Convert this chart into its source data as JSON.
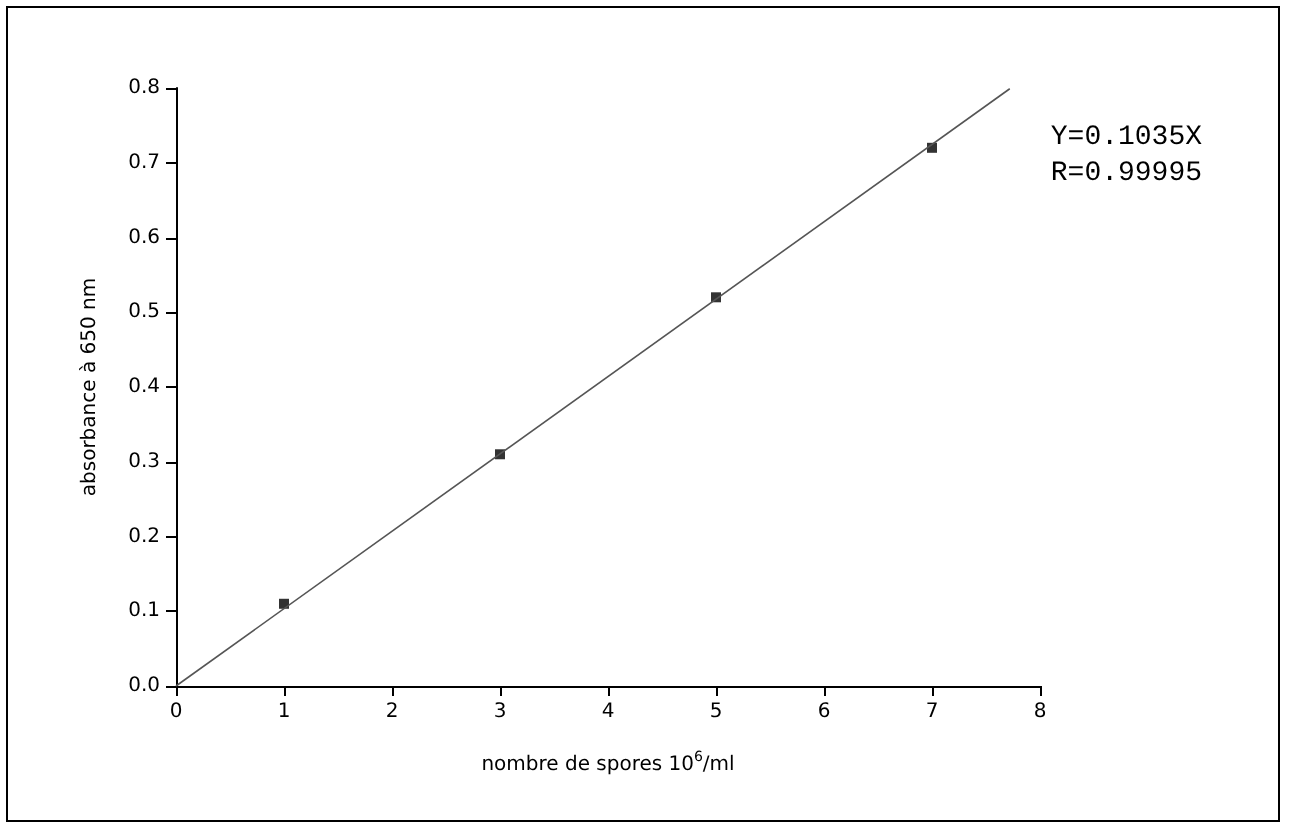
{
  "chart_data": {
    "type": "scatter",
    "xlabel": "nombre de spores 10$^{6}$/ml",
    "ylabel": "absorbance à 650 nm",
    "annotations": [
      "Y=0.1035X",
      "R=0.99995"
    ],
    "series": [
      {
        "color": "#000000",
        "x": [
          1,
          3,
          5,
          7
        ],
        "values": [
          0.11,
          0.31,
          0.52,
          0.72
        ],
        "marker": "square"
      },
      {
        "type": "line",
        "color": "#555555",
        "x": [
          0,
          7.72
        ],
        "values": [
          0,
          0.799
        ],
        "marker": "none",
        "line_style": "solid"
      }
    ],
    "xlim": [
      0,
      8
    ],
    "xticks": [
      0,
      1,
      2,
      3,
      4,
      5,
      6,
      7,
      8
    ],
    "ylim": [
      0,
      0.8
    ],
    "yticks": [
      {
        "value": 0,
        "label": "0.0"
      },
      0.1,
      0.2,
      0.3,
      0.4,
      0.5,
      0.6,
      0.7,
      0.8
    ],
    "grid": false
  }
}
